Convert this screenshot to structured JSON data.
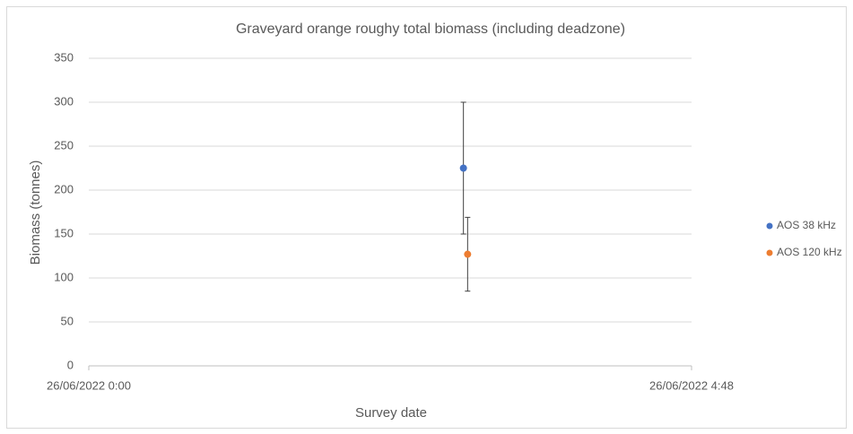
{
  "chart_data": {
    "type": "scatter",
    "title": "Graveyard orange roughy total biomass  (including deadzone)",
    "x_label": "Survey date",
    "y_label": "Biomass (tonnes)",
    "xlim": [
      "26/06/2022 0:00",
      "26/06/2022 4:48"
    ],
    "xticks": [
      "26/06/2022 0:00",
      "26/06/2022 4:48"
    ],
    "ylim": [
      0,
      350
    ],
    "yticks": [
      0,
      50,
      100,
      150,
      200,
      250,
      300,
      350
    ],
    "grid": true,
    "legend": "right",
    "series": [
      {
        "name": "AOS 38 kHz",
        "color": "#4472c4",
        "x": [
          "26/06/2022 2:59"
        ],
        "values": [
          225
        ],
        "errors": [
          75
        ]
      },
      {
        "name": "AOS 120 kHz",
        "color": "#ed7d31",
        "x": [
          "26/06/2022 3:01"
        ],
        "values": [
          127
        ],
        "errors": [
          42
        ]
      }
    ]
  }
}
